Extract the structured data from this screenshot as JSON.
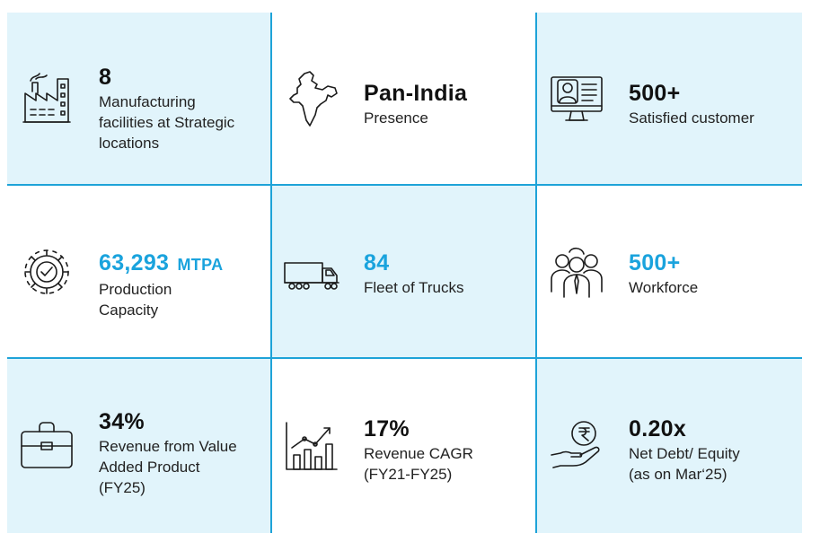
{
  "cards": [
    {
      "value": "8",
      "label": "Manufacturing\nfacilities at Strategic\nlocations",
      "icon": "factory-icon"
    },
    {
      "value": "Pan-India",
      "label": "Presence",
      "icon": "india-map-icon"
    },
    {
      "value": "500+",
      "label": "Satisfied customer",
      "icon": "customer-monitor-icon"
    },
    {
      "value": "63,293",
      "unit": "MTPA",
      "label": "Production\nCapacity",
      "icon": "gear-check-icon"
    },
    {
      "value": "84",
      "label": "Fleet of Trucks",
      "icon": "truck-icon"
    },
    {
      "value": "500+",
      "label": "Workforce",
      "icon": "workforce-icon"
    },
    {
      "value": "34%",
      "label": "Revenue from Value\nAdded Product\n(FY25)",
      "icon": "briefcase-icon"
    },
    {
      "value": "17%",
      "label": "Revenue CAGR\n(FY21-FY25)",
      "icon": "growth-chart-icon"
    },
    {
      "value": "0.20x",
      "label": "Net Debt/ Equity\n(as on Mar‘25)",
      "icon": "rupee-hand-icon"
    }
  ],
  "colors": {
    "accent": "#1aa3dd",
    "cell_light": "#e1f4fb",
    "border": "#1ea3d8",
    "text": "#111111"
  }
}
